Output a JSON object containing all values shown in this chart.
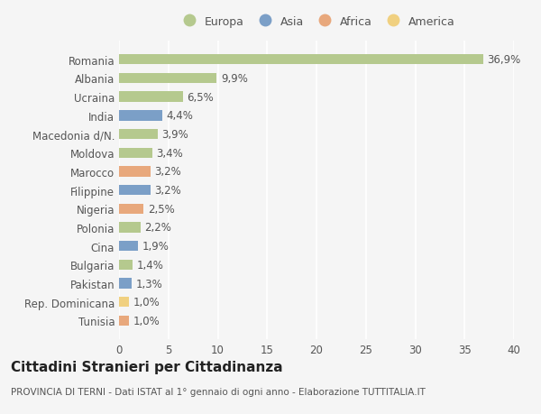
{
  "countries": [
    "Romania",
    "Albania",
    "Ucraina",
    "India",
    "Macedonia d/N.",
    "Moldova",
    "Marocco",
    "Filippine",
    "Nigeria",
    "Polonia",
    "Cina",
    "Bulgaria",
    "Pakistan",
    "Rep. Dominicana",
    "Tunisia"
  ],
  "values": [
    36.9,
    9.9,
    6.5,
    4.4,
    3.9,
    3.4,
    3.2,
    3.2,
    2.5,
    2.2,
    1.9,
    1.4,
    1.3,
    1.0,
    1.0
  ],
  "labels": [
    "36,9%",
    "9,9%",
    "6,5%",
    "4,4%",
    "3,9%",
    "3,4%",
    "3,2%",
    "3,2%",
    "2,5%",
    "2,2%",
    "1,9%",
    "1,4%",
    "1,3%",
    "1,0%",
    "1,0%"
  ],
  "continents": [
    "Europa",
    "Europa",
    "Europa",
    "Asia",
    "Europa",
    "Europa",
    "Africa",
    "Asia",
    "Africa",
    "Europa",
    "Asia",
    "Europa",
    "Asia",
    "America",
    "Africa"
  ],
  "continent_colors": {
    "Europa": "#b5c98e",
    "Asia": "#7b9fc7",
    "Africa": "#e8a87c",
    "America": "#f0d080"
  },
  "legend_order": [
    "Europa",
    "Asia",
    "Africa",
    "America"
  ],
  "title": "Cittadini Stranieri per Cittadinanza",
  "subtitle": "PROVINCIA DI TERNI - Dati ISTAT al 1° gennaio di ogni anno - Elaborazione TUTTITALIA.IT",
  "xlim": [
    0,
    40
  ],
  "xticks": [
    0,
    5,
    10,
    15,
    20,
    25,
    30,
    35,
    40
  ],
  "background_color": "#f5f5f5",
  "grid_color": "#ffffff",
  "bar_height": 0.55,
  "label_fontsize": 8.5,
  "tick_fontsize": 8.5,
  "title_fontsize": 11,
  "subtitle_fontsize": 7.5
}
